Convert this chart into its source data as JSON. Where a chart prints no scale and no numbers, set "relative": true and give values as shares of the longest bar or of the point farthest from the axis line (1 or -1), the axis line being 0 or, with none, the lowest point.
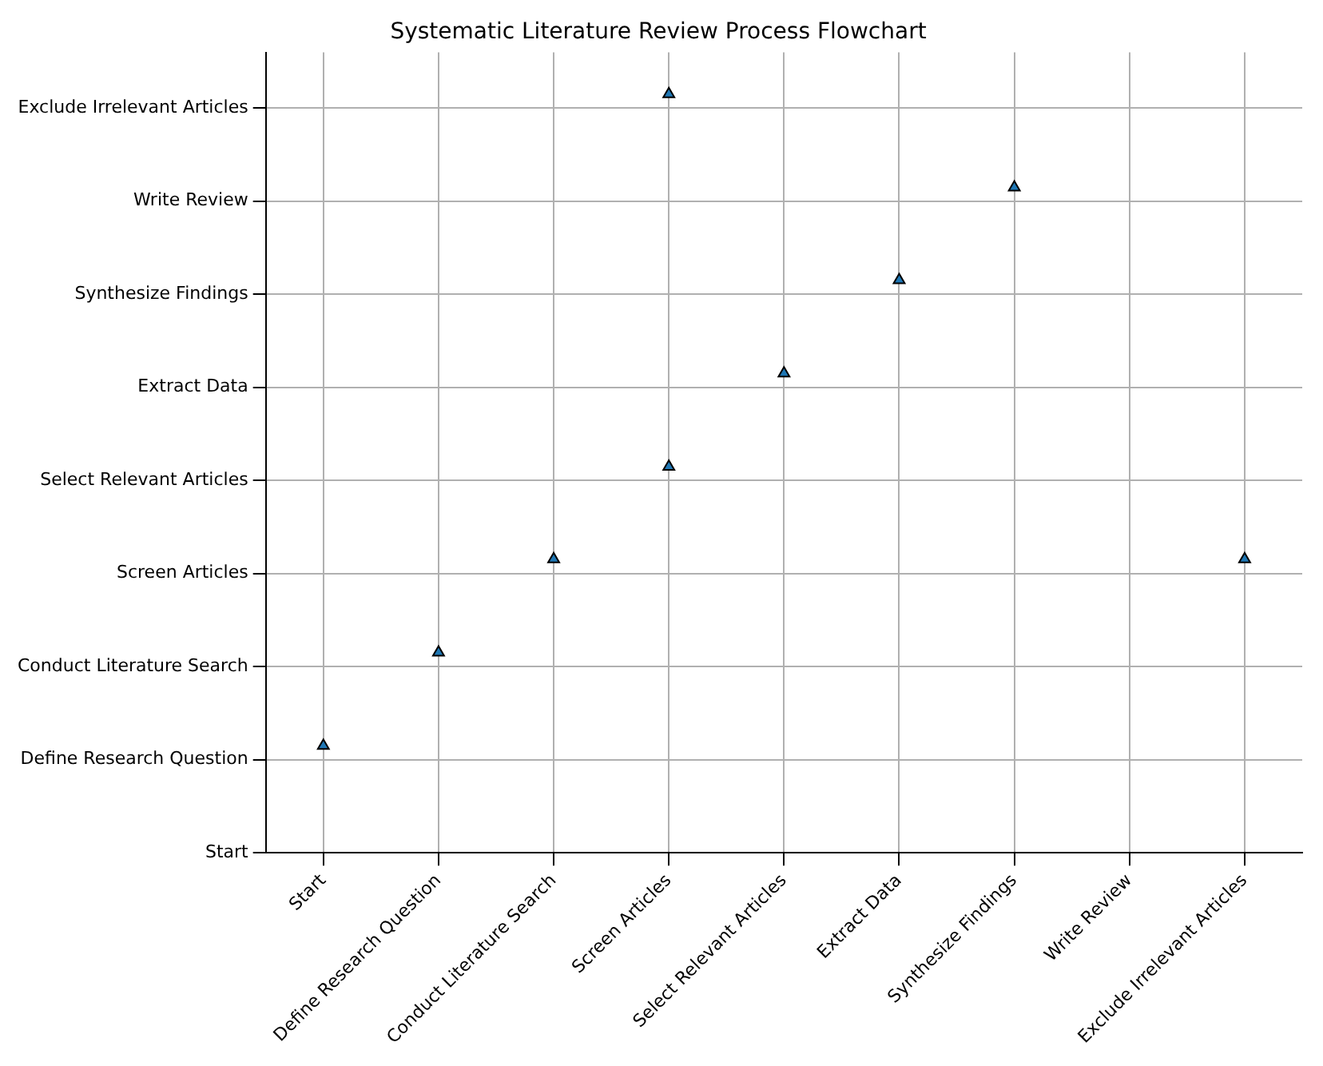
{
  "chart_data": {
    "type": "scatter",
    "title": "Systematic Literature Review Process Flowchart",
    "categories": [
      "Start",
      "Define Research Question",
      "Conduct Literature Search",
      "Screen Articles",
      "Select Relevant Articles",
      "Extract Data",
      "Synthesize Findings",
      "Write Review",
      "Exclude Irrelevant Articles"
    ],
    "series": [
      {
        "color": "#1f77b4",
        "x": [
          "Start",
          "Define Research Question",
          "Conduct Literature Search",
          "Screen Articles",
          "Select Relevant Articles",
          "Extract Data",
          "Synthesize Findings",
          "Screen Articles",
          "Exclude Irrelevant Articles"
        ],
        "values": [
          0.141,
          0.264,
          0.387,
          0.509,
          0.632,
          0.755,
          0.877,
          1,
          0.387
        ]
      }
    ],
    "relative": true,
    "y_categories": [
      "Exclude Irrelevant Articles",
      "Write Review",
      "Synthesize Findings",
      "Extract Data",
      "Select Relevant Articles",
      "Screen Articles",
      "Conduct Literature Search",
      "Define Research Question",
      "Start"
    ],
    "grid": true,
    "legend": false,
    "marker": "triangle"
  }
}
